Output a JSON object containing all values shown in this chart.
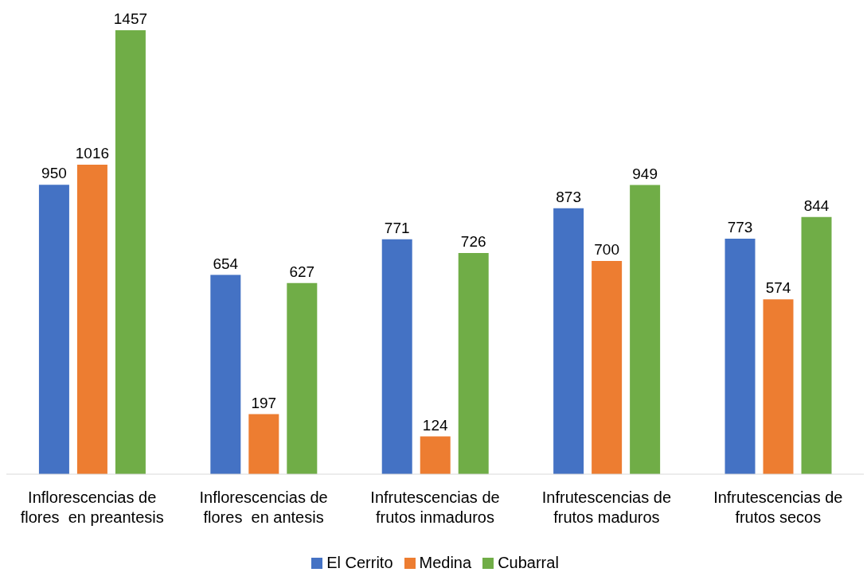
{
  "chart_data": {
    "type": "bar",
    "categories": [
      "Inflorescencias de flores  en preantesis",
      "Inflorescencias de flores  en antesis",
      "Infrutescencias de frutos inmaduros",
      "Infrutescencias de frutos maduros",
      "Infrutescencias de frutos secos"
    ],
    "series": [
      {
        "name": "El Cerrito",
        "color": "#4472c4",
        "values": [
          950,
          654,
          771,
          873,
          773
        ]
      },
      {
        "name": "Medina",
        "color": "#ed7d31",
        "values": [
          1016,
          197,
          124,
          700,
          574
        ]
      },
      {
        "name": "Cubarral",
        "color": "#70ad47",
        "values": [
          1457,
          627,
          726,
          949,
          844
        ]
      }
    ],
    "data_labels": true,
    "legend": "bottom",
    "tick_labels": "x"
  }
}
